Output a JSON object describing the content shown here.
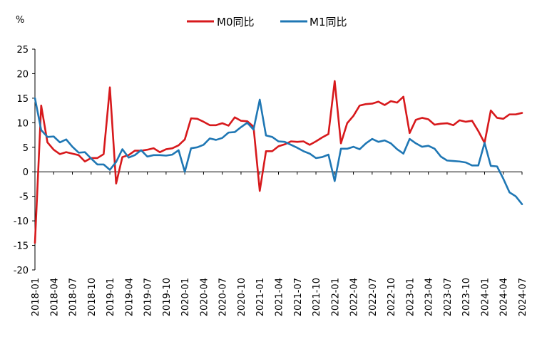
{
  "chart_data": {
    "type": "line",
    "title": "",
    "ylabel": "%",
    "xlabel": "",
    "ylim": [
      -20,
      25
    ],
    "yticks": [
      25,
      20,
      15,
      10,
      5,
      0,
      -5,
      -10,
      -15,
      -20
    ],
    "grid": false,
    "legend_position": "top-center",
    "x": [
      "2018-01",
      "2018-02",
      "2018-03",
      "2018-04",
      "2018-05",
      "2018-06",
      "2018-07",
      "2018-08",
      "2018-09",
      "2018-10",
      "2018-11",
      "2018-12",
      "2019-01",
      "2019-02",
      "2019-03",
      "2019-04",
      "2019-05",
      "2019-06",
      "2019-07",
      "2019-08",
      "2019-09",
      "2019-10",
      "2019-11",
      "2019-12",
      "2020-01",
      "2020-02",
      "2020-03",
      "2020-04",
      "2020-05",
      "2020-06",
      "2020-07",
      "2020-08",
      "2020-09",
      "2020-10",
      "2020-11",
      "2020-12",
      "2021-01",
      "2021-02",
      "2021-03",
      "2021-04",
      "2021-05",
      "2021-06",
      "2021-07",
      "2021-08",
      "2021-09",
      "2021-10",
      "2021-11",
      "2021-12",
      "2022-01",
      "2022-02",
      "2022-03",
      "2022-04",
      "2022-05",
      "2022-06",
      "2022-07",
      "2022-08",
      "2022-09",
      "2022-10",
      "2022-11",
      "2022-12",
      "2023-01",
      "2023-02",
      "2023-03",
      "2023-04",
      "2023-05",
      "2023-06",
      "2023-07",
      "2023-08",
      "2023-09",
      "2023-10",
      "2023-11",
      "2023-12",
      "2024-01",
      "2024-02",
      "2024-03",
      "2024-04",
      "2024-05",
      "2024-06",
      "2024-07"
    ],
    "xtick_labels": [
      "2018-01",
      "2018-04",
      "2018-07",
      "2018-10",
      "2019-01",
      "2019-04",
      "2019-07",
      "2019-10",
      "2020-01",
      "2020-04",
      "2020-07",
      "2020-10",
      "2021-01",
      "2021-04",
      "2021-07",
      "2021-10",
      "2022-01",
      "2022-04",
      "2022-07",
      "2022-10",
      "2023-01",
      "2023-04",
      "2023-07",
      "2023-10",
      "2024-01",
      "2024-04",
      "2024-07"
    ],
    "series": [
      {
        "name": "M0同比",
        "color": "#d7191c",
        "values": [
          -14.5,
          13.5,
          6.0,
          4.5,
          3.6,
          4.0,
          3.7,
          3.4,
          2.1,
          2.8,
          2.8,
          3.6,
          17.2,
          -2.4,
          3.0,
          3.4,
          4.3,
          4.3,
          4.5,
          4.8,
          4.0,
          4.6,
          4.8,
          5.4,
          6.6,
          10.9,
          10.8,
          10.2,
          9.5,
          9.5,
          9.9,
          9.4,
          11.1,
          10.4,
          10.3,
          9.2,
          -3.9,
          4.2,
          4.2,
          5.2,
          5.6,
          6.2,
          6.1,
          6.2,
          5.5,
          6.2,
          7.0,
          7.7,
          18.5,
          5.8,
          9.9,
          11.4,
          13.5,
          13.8,
          13.9,
          14.3,
          13.6,
          14.4,
          14.1,
          15.3,
          7.9,
          10.6,
          11.0,
          10.7,
          9.6,
          9.8,
          9.9,
          9.5,
          10.5,
          10.2,
          10.4,
          8.3,
          5.9,
          12.5,
          11.0,
          10.8,
          11.7,
          11.7,
          12.0
        ]
      },
      {
        "name": "M1同比",
        "color": "#1f77b4",
        "values": [
          15.0,
          8.5,
          7.1,
          7.2,
          6.0,
          6.6,
          5.1,
          3.9,
          4.0,
          2.7,
          1.5,
          1.5,
          0.4,
          2.0,
          4.6,
          2.9,
          3.4,
          4.4,
          3.1,
          3.4,
          3.4,
          3.3,
          3.5,
          4.4,
          0.0,
          4.8,
          5.0,
          5.5,
          6.8,
          6.5,
          6.9,
          8.0,
          8.1,
          9.1,
          10.0,
          8.6,
          14.7,
          7.4,
          7.1,
          6.2,
          6.1,
          5.5,
          4.9,
          4.2,
          3.7,
          2.8,
          3.0,
          3.5,
          -1.9,
          4.7,
          4.7,
          5.1,
          4.6,
          5.8,
          6.7,
          6.1,
          6.4,
          5.8,
          4.6,
          3.7,
          6.7,
          5.8,
          5.1,
          5.3,
          4.7,
          3.1,
          2.3,
          2.2,
          2.1,
          1.9,
          1.3,
          1.3,
          5.9,
          1.2,
          1.1,
          -1.4,
          -4.2,
          -5.0,
          -6.6
        ]
      }
    ]
  }
}
